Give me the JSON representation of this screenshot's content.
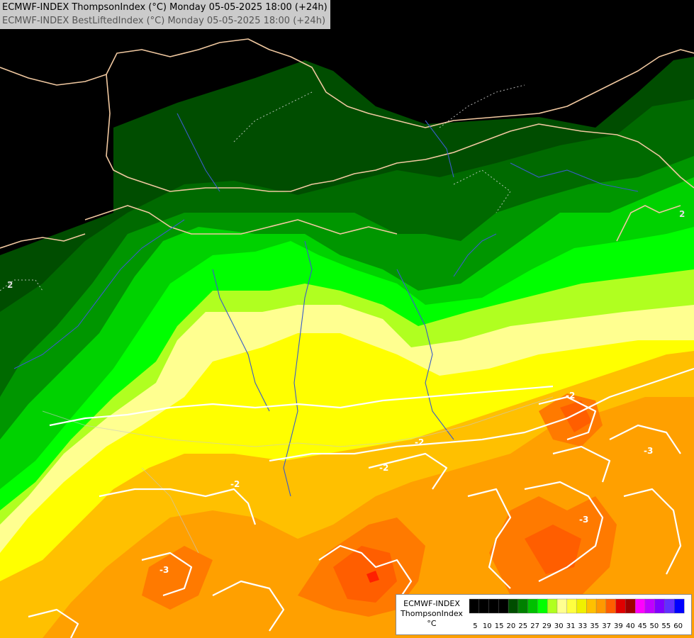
{
  "header": {
    "line1": "ECMWF-INDEX ThompsonIndex (°C) Monday 05-05-2025 18:00 (+24h)",
    "line2": "ECMWF-INDEX BestLiftedIndex (°C) Monday 05-05-2025 18:00 (+24h)"
  },
  "contour_labels": [
    "-2",
    "-2",
    "-2",
    "-2",
    "-3",
    "-3",
    "-3",
    "2",
    "2"
  ],
  "legend": {
    "model": "ECMWF-INDEX",
    "parameter": "ThompsonIndex",
    "unit": "°C",
    "colors": [
      "#000000",
      "#000000",
      "#000000",
      "#000000",
      "#004d00",
      "#008000",
      "#00c000",
      "#00ff00",
      "#b0ff20",
      "#ffff90",
      "#ffff40",
      "#f0f000",
      "#ffc000",
      "#ff9900",
      "#ff5e00",
      "#e00000",
      "#a00000",
      "#ff00ff",
      "#c000ff",
      "#8000ff",
      "#6030ff",
      "#0000ff"
    ],
    "ticks": [
      "5",
      "10",
      "15",
      "20",
      "25",
      "27",
      "29",
      "30",
      "31",
      "33",
      "35",
      "37",
      "39",
      "40",
      "45",
      "50",
      "55",
      "60"
    ]
  },
  "palette": {
    "very_dark_green": "#004d00",
    "dark_green": "#006a00",
    "green": "#009600",
    "bright_green": "#00d200",
    "lime": "#00ff00",
    "yellow_green": "#b0ff20",
    "pale_yellow": "#ffff90",
    "yellow": "#ffff00",
    "gold": "#f0f000",
    "orange_yellow": "#ffc000",
    "orange": "#ffa000",
    "dark_orange": "#ff7a00",
    "red_orange": "#ff5e00",
    "red": "#ff2000",
    "border_color": "#f0c8a0",
    "river_color": "#3a5cc8"
  }
}
